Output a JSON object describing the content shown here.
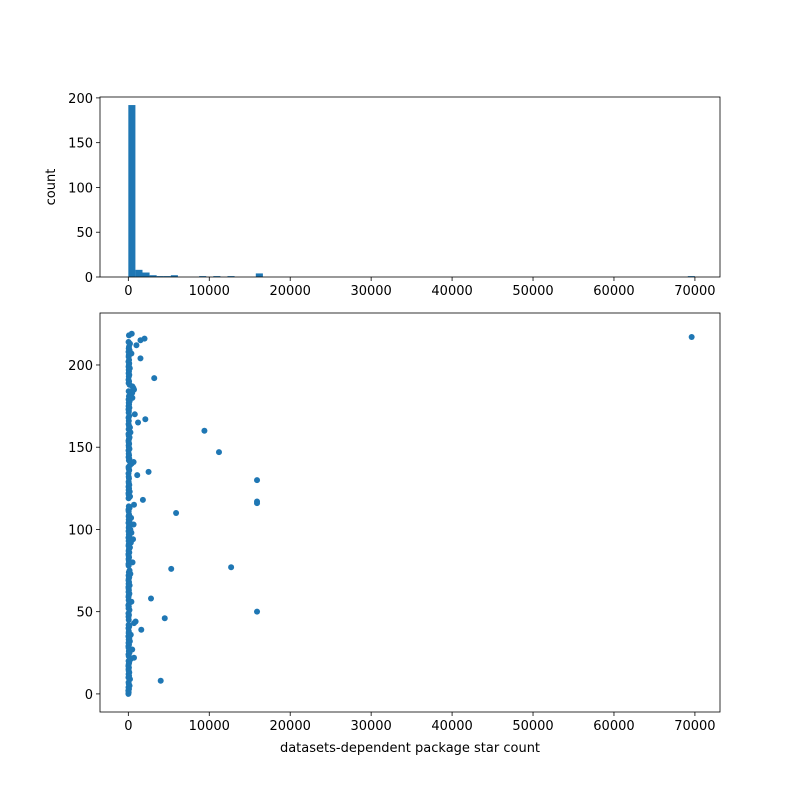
{
  "chart_data": [
    {
      "type": "histogram",
      "ylabel": "count",
      "color": "#1f77b4",
      "bins": [
        0,
        875,
        1750,
        2625,
        3500,
        4375,
        5250,
        6125,
        7000,
        7875,
        8750,
        9625,
        10500,
        11375,
        12250,
        13125,
        14000,
        14875,
        15750,
        16625,
        17500,
        18375,
        19250,
        20125,
        21000,
        21875,
        22750,
        23625,
        24500,
        25375,
        26250,
        27125,
        28000,
        28875,
        29750,
        30625,
        31500,
        32375,
        33250,
        34125,
        35000,
        35875,
        36750,
        37625,
        38500,
        39375,
        40250,
        41125,
        42000,
        42875,
        43750,
        44625,
        45500,
        46375,
        47250,
        48125,
        49000,
        49875,
        50750,
        51625,
        52500,
        53375,
        54250,
        55125,
        56000,
        56875,
        57750,
        58625,
        59500,
        60375,
        61250,
        62125,
        63000,
        63875,
        64750,
        65625,
        66500,
        67375,
        68250,
        69125,
        70000
      ],
      "counts": [
        192,
        8,
        5,
        2,
        1,
        1,
        2,
        0,
        0,
        0,
        1,
        0,
        1,
        0,
        1,
        0,
        0,
        0,
        4,
        0,
        0,
        0,
        0,
        0,
        0,
        0,
        0,
        0,
        0,
        0,
        0,
        0,
        0,
        0,
        0,
        0,
        0,
        0,
        0,
        0,
        0,
        0,
        0,
        0,
        0,
        0,
        0,
        0,
        0,
        0,
        0,
        0,
        0,
        0,
        0,
        0,
        0,
        0,
        0,
        0,
        0,
        0,
        0,
        0,
        0,
        0,
        0,
        0,
        0,
        0,
        0,
        0,
        0,
        0,
        0,
        0,
        0,
        0,
        0,
        1
      ],
      "xlim": [
        -3500,
        73100
      ],
      "ylim": [
        0,
        201
      ],
      "xticks": [
        0,
        10000,
        20000,
        30000,
        40000,
        50000,
        60000,
        70000
      ],
      "yticks": [
        0,
        50,
        100,
        150,
        200
      ]
    },
    {
      "type": "scatter",
      "xlabel": "datasets-dependent package star count",
      "color": "#1f77b4",
      "x": [
        10,
        40,
        5,
        80,
        20,
        150,
        60,
        30,
        4000,
        200,
        15,
        90,
        35,
        120,
        50,
        25,
        70,
        10,
        45,
        100,
        30,
        260,
        700,
        55,
        20,
        140,
        65,
        480,
        35,
        15,
        80,
        25,
        190,
        50,
        120,
        10,
        300,
        40,
        60,
        1600,
        20,
        110,
        35,
        700,
        900,
        50,
        4500,
        25,
        75,
        15,
        15900,
        140,
        30,
        60,
        10,
        90,
        380,
        45,
        2800,
        20,
        55,
        130,
        25,
        70,
        40,
        15,
        160,
        35,
        85,
        20,
        50,
        110,
        30,
        250,
        65,
        150,
        5300,
        12700,
        40,
        20,
        520,
        60,
        30,
        90,
        45,
        15,
        120,
        35,
        75,
        200,
        25,
        55,
        310,
        40,
        580,
        20,
        100,
        65,
        380,
        30,
        250,
        45,
        80,
        650,
        20,
        130,
        55,
        340,
        35,
        90,
        5900,
        40,
        20,
        150,
        60,
        700,
        15900,
        15900,
        1800,
        30,
        210,
        50,
        20,
        170,
        40,
        90,
        25,
        120,
        60,
        35,
        15900,
        80,
        45,
        1100,
        20,
        2500,
        110,
        50,
        30,
        200,
        400,
        650,
        70,
        120,
        30,
        90,
        50,
        11200,
        20,
        140,
        65,
        35,
        100,
        45,
        25,
        80,
        150,
        55,
        20,
        260,
        9400,
        40,
        200,
        85,
        30,
        1200,
        60,
        2100,
        25,
        110,
        800,
        45,
        70,
        20,
        130,
        35,
        90,
        55,
        160,
        30,
        500,
        75,
        300,
        480,
        45,
        700,
        620,
        500,
        150,
        40,
        90,
        25,
        3200,
        60,
        120,
        35,
        80,
        50,
        180,
        30,
        70,
        110,
        20,
        90,
        1500,
        40,
        60,
        380,
        25,
        150,
        50,
        80,
        1000,
        200,
        30,
        1500,
        2000,
        69600,
        80,
        420
      ],
      "y": [
        0,
        1,
        2,
        3,
        4,
        5,
        6,
        7,
        8,
        9,
        10,
        11,
        12,
        13,
        14,
        15,
        16,
        17,
        18,
        19,
        20,
        21,
        22,
        23,
        24,
        25,
        26,
        27,
        28,
        29,
        30,
        31,
        32,
        33,
        34,
        35,
        36,
        37,
        38,
        39,
        40,
        41,
        42,
        43,
        44,
        45,
        46,
        47,
        48,
        49,
        50,
        51,
        52,
        53,
        54,
        55,
        56,
        57,
        58,
        59,
        60,
        61,
        62,
        63,
        64,
        65,
        66,
        67,
        68,
        69,
        70,
        71,
        72,
        73,
        74,
        75,
        76,
        77,
        78,
        79,
        80,
        81,
        82,
        83,
        84,
        85,
        86,
        87,
        88,
        89,
        90,
        91,
        92,
        93,
        94,
        95,
        96,
        97,
        98,
        99,
        100,
        101,
        102,
        103,
        104,
        105,
        106,
        107,
        108,
        109,
        110,
        111,
        112,
        113,
        114,
        115,
        116,
        117,
        118,
        119,
        120,
        121,
        122,
        123,
        124,
        125,
        126,
        127,
        128,
        129,
        130,
        131,
        132,
        133,
        134,
        135,
        136,
        137,
        138,
        139,
        140,
        141,
        142,
        143,
        144,
        145,
        146,
        147,
        148,
        149,
        150,
        151,
        152,
        153,
        154,
        155,
        156,
        157,
        158,
        159,
        160,
        161,
        162,
        163,
        164,
        165,
        166,
        167,
        168,
        169,
        170,
        171,
        172,
        173,
        174,
        175,
        176,
        177,
        178,
        179,
        180,
        181,
        182,
        183,
        184,
        185,
        186,
        187,
        188,
        189,
        190,
        191,
        192,
        193,
        194,
        195,
        196,
        197,
        198,
        199,
        200,
        201,
        202,
        203,
        204,
        205,
        206,
        207,
        208,
        209,
        210,
        211,
        212,
        213,
        214,
        215,
        216,
        217,
        218,
        219
      ],
      "xlim": [
        -3500,
        73100
      ],
      "ylim": [
        -11,
        231.6
      ],
      "xticks": [
        0,
        10000,
        20000,
        30000,
        40000,
        50000,
        60000,
        70000
      ],
      "yticks": [
        0,
        50,
        100,
        150,
        200
      ]
    }
  ]
}
